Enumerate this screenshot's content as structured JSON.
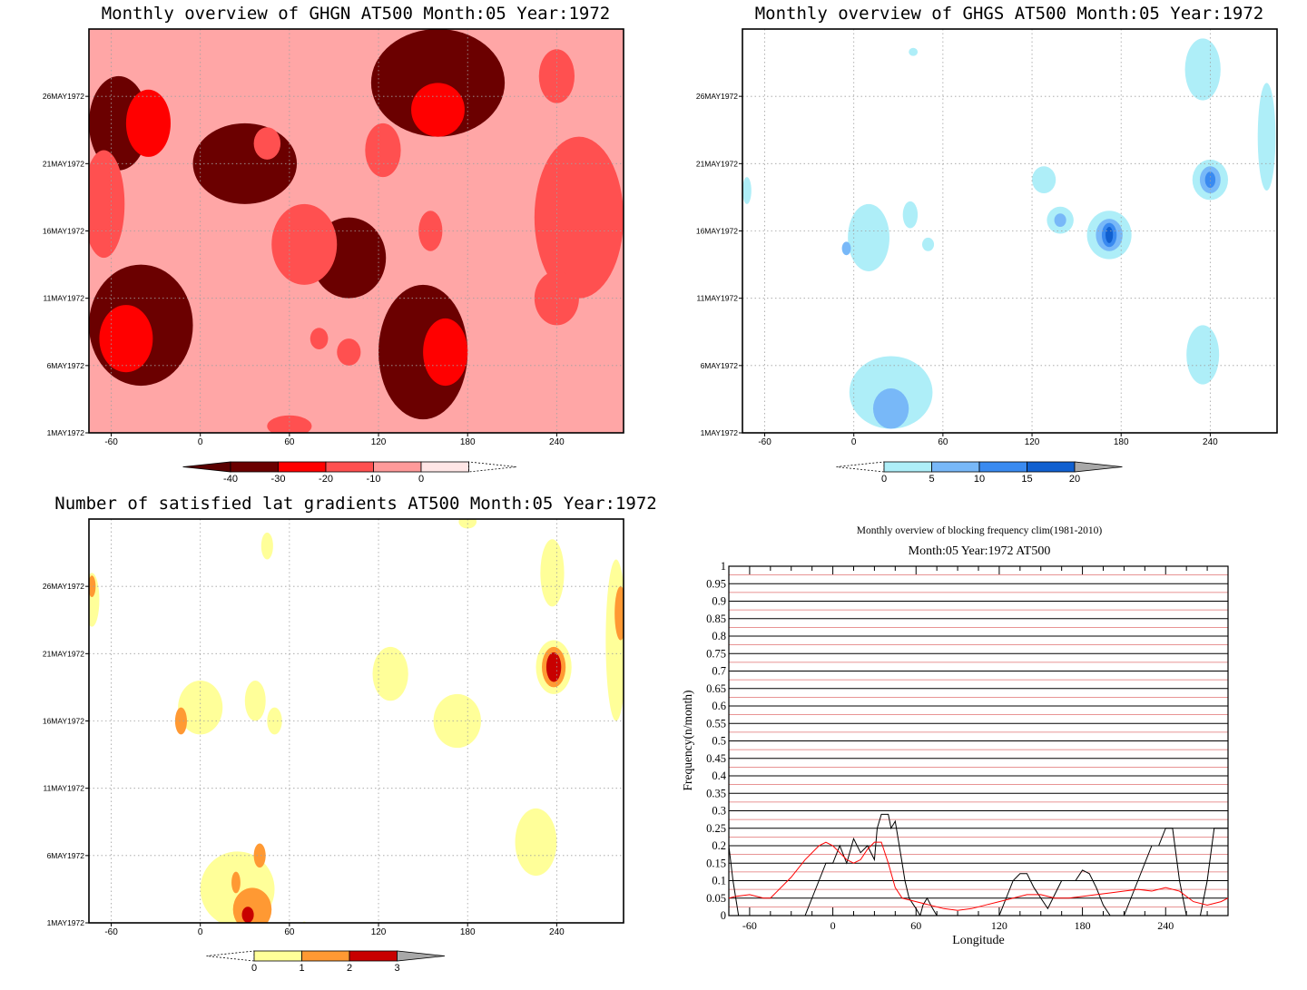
{
  "chart_data": [
    {
      "id": "ghgn",
      "type": "heatmap",
      "title": "Monthly overview of GHGN AT500 Month:05 Year:1972",
      "xlim": [
        -75,
        285
      ],
      "xticks": [
        -60,
        0,
        60,
        120,
        180,
        240
      ],
      "ylim": [
        1,
        31
      ],
      "yticks": [
        {
          "day": 1,
          "label": "1MAY1972"
        },
        {
          "day": 6,
          "label": "6MAY1972"
        },
        {
          "day": 11,
          "label": "11MAY1972"
        },
        {
          "day": 16,
          "label": "16MAY1972"
        },
        {
          "day": 21,
          "label": "21MAY1972"
        },
        {
          "day": 26,
          "label": "26MAY1972"
        }
      ],
      "colorbar": {
        "labels": [
          "-40",
          "-30",
          "-20",
          "-10",
          "0"
        ],
        "colors": [
          "#6b0000",
          "#ff0000",
          "#ff5050",
          "#ff9a9a",
          "#ffe6e6"
        ],
        "extend": "both"
      },
      "background": "#ffa6a6",
      "regions": [
        {
          "level": 0,
          "x": -40,
          "y": 9,
          "rx": 35,
          "ry": 4.5
        },
        {
          "level": 0,
          "x": 30,
          "y": 21,
          "rx": 35,
          "ry": 3
        },
        {
          "level": 0,
          "x": 150,
          "y": 7,
          "rx": 30,
          "ry": 5
        },
        {
          "level": 0,
          "x": 160,
          "y": 27,
          "rx": 45,
          "ry": 4
        },
        {
          "level": 0,
          "x": 100,
          "y": 14,
          "rx": 25,
          "ry": 3
        },
        {
          "level": 0,
          "x": -55,
          "y": 24,
          "rx": 20,
          "ry": 3.5
        },
        {
          "level": 1,
          "x": -35,
          "y": 24,
          "rx": 15,
          "ry": 2.5
        },
        {
          "level": 1,
          "x": 165,
          "y": 7,
          "rx": 15,
          "ry": 2.5
        },
        {
          "level": 1,
          "x": 160,
          "y": 25,
          "rx": 18,
          "ry": 2
        },
        {
          "level": 1,
          "x": -50,
          "y": 8,
          "rx": 18,
          "ry": 2.5
        },
        {
          "level": 2,
          "x": -65,
          "y": 18,
          "rx": 14,
          "ry": 4
        },
        {
          "level": 2,
          "x": 255,
          "y": 17,
          "rx": 30,
          "ry": 6
        },
        {
          "level": 2,
          "x": 240,
          "y": 11,
          "rx": 15,
          "ry": 2
        },
        {
          "level": 2,
          "x": 70,
          "y": 15,
          "rx": 22,
          "ry": 3
        },
        {
          "level": 2,
          "x": 123,
          "y": 22,
          "rx": 12,
          "ry": 2
        },
        {
          "level": 2,
          "x": 45,
          "y": 22.5,
          "rx": 9,
          "ry": 1.2
        },
        {
          "level": 2,
          "x": 240,
          "y": 27.5,
          "rx": 12,
          "ry": 2
        },
        {
          "level": 2,
          "x": 155,
          "y": 16,
          "rx": 8,
          "ry": 1.5
        },
        {
          "level": 2,
          "x": 60,
          "y": 1.5,
          "rx": 15,
          "ry": 0.8
        },
        {
          "level": 2,
          "x": 80,
          "y": 8,
          "rx": 6,
          "ry": 0.8
        },
        {
          "level": 2,
          "x": 100,
          "y": 7,
          "rx": 8,
          "ry": 1
        }
      ]
    },
    {
      "id": "ghgs",
      "type": "heatmap",
      "title": "Monthly overview of GHGS AT500 Month:05 Year:1972",
      "xlim": [
        -75,
        285
      ],
      "xticks": [
        -60,
        0,
        60,
        120,
        180,
        240
      ],
      "ylim": [
        1,
        31
      ],
      "yticks": [
        {
          "day": 1,
          "label": "1MAY1972"
        },
        {
          "day": 6,
          "label": "6MAY1972"
        },
        {
          "day": 11,
          "label": "11MAY1972"
        },
        {
          "day": 16,
          "label": "16MAY1972"
        },
        {
          "day": 21,
          "label": "21MAY1972"
        },
        {
          "day": 26,
          "label": "26MAY1972"
        }
      ],
      "colorbar": {
        "labels": [
          "0",
          "5",
          "10",
          "15",
          "20"
        ],
        "colors": [
          "#aeeef8",
          "#78b8f8",
          "#3a8af0",
          "#1060d0"
        ],
        "extend": "both"
      },
      "background": "#ffffff",
      "regions": [
        {
          "level": 0,
          "x": 10,
          "y": 15.5,
          "rx": 14,
          "ry": 2.5
        },
        {
          "level": 1,
          "x": -5,
          "y": 14.7,
          "rx": 3,
          "ry": 0.5
        },
        {
          "level": 0,
          "x": 25,
          "y": 4,
          "rx": 28,
          "ry": 2.7
        },
        {
          "level": 1,
          "x": 25,
          "y": 2.8,
          "rx": 12,
          "ry": 1.5
        },
        {
          "level": 0,
          "x": 38,
          "y": 17.2,
          "rx": 5,
          "ry": 1
        },
        {
          "level": 0,
          "x": 50,
          "y": 15,
          "rx": 4,
          "ry": 0.5
        },
        {
          "level": 0,
          "x": 128,
          "y": 19.8,
          "rx": 8,
          "ry": 1
        },
        {
          "level": 0,
          "x": 139,
          "y": 16.8,
          "rx": 9,
          "ry": 1
        },
        {
          "level": 1,
          "x": 139,
          "y": 16.8,
          "rx": 4,
          "ry": 0.5
        },
        {
          "level": 0,
          "x": 172,
          "y": 15.7,
          "rx": 15,
          "ry": 1.8
        },
        {
          "level": 1,
          "x": 172,
          "y": 15.7,
          "rx": 9,
          "ry": 1.2
        },
        {
          "level": 2,
          "x": 172,
          "y": 15.7,
          "rx": 5,
          "ry": 0.9
        },
        {
          "level": 3,
          "x": 172,
          "y": 15.7,
          "rx": 2.5,
          "ry": 0.6
        },
        {
          "level": 0,
          "x": 240,
          "y": 19.8,
          "rx": 12,
          "ry": 1.5
        },
        {
          "level": 1,
          "x": 240,
          "y": 19.8,
          "rx": 7,
          "ry": 1
        },
        {
          "level": 2,
          "x": 240,
          "y": 19.8,
          "rx": 3.5,
          "ry": 0.6
        },
        {
          "level": 0,
          "x": 235,
          "y": 6.8,
          "rx": 11,
          "ry": 2.2
        },
        {
          "level": 0,
          "x": 235,
          "y": 28,
          "rx": 12,
          "ry": 2.3
        },
        {
          "level": 0,
          "x": 278,
          "y": 23,
          "rx": 6,
          "ry": 4
        },
        {
          "level": 0,
          "x": -72,
          "y": 19,
          "rx": 3,
          "ry": 1
        },
        {
          "level": 0,
          "x": 40,
          "y": 29.3,
          "rx": 3,
          "ry": 0.3
        }
      ]
    },
    {
      "id": "lat-gradients",
      "type": "heatmap",
      "title": "Number of satisfied lat gradients AT500 Month:05 Year:1972",
      "xlim": [
        -75,
        285
      ],
      "xticks": [
        -60,
        0,
        60,
        120,
        180,
        240
      ],
      "ylim": [
        1,
        31
      ],
      "yticks": [
        {
          "day": 1,
          "label": "1MAY1972"
        },
        {
          "day": 6,
          "label": "6MAY1972"
        },
        {
          "day": 11,
          "label": "11MAY1972"
        },
        {
          "day": 16,
          "label": "16MAY1972"
        },
        {
          "day": 21,
          "label": "21MAY1972"
        },
        {
          "day": 26,
          "label": "26MAY1972"
        }
      ],
      "colorbar": {
        "labels": [
          "0",
          "1",
          "2",
          "3"
        ],
        "colors": [
          "#ffff99",
          "#ff9933",
          "#c80000"
        ],
        "extend": "both"
      },
      "background": "#ffffff",
      "regions": [
        {
          "level": 0,
          "x": 25,
          "y": 3.5,
          "rx": 25,
          "ry": 2.8
        },
        {
          "level": 1,
          "x": 35,
          "y": 2,
          "rx": 13,
          "ry": 1.6
        },
        {
          "level": 1,
          "x": 40,
          "y": 6,
          "rx": 4,
          "ry": 0.9
        },
        {
          "level": 1,
          "x": 24,
          "y": 4,
          "rx": 3,
          "ry": 0.8
        },
        {
          "level": 2,
          "x": 32,
          "y": 1.6,
          "rx": 4,
          "ry": 0.6
        },
        {
          "level": 0,
          "x": 0,
          "y": 17,
          "rx": 15,
          "ry": 2
        },
        {
          "level": 1,
          "x": -13,
          "y": 16,
          "rx": 4,
          "ry": 1
        },
        {
          "level": 0,
          "x": 37,
          "y": 17.5,
          "rx": 7,
          "ry": 1.5
        },
        {
          "level": 0,
          "x": 50,
          "y": 16,
          "rx": 5,
          "ry": 1
        },
        {
          "level": 0,
          "x": 128,
          "y": 19.5,
          "rx": 12,
          "ry": 2
        },
        {
          "level": 0,
          "x": 173,
          "y": 16,
          "rx": 16,
          "ry": 2
        },
        {
          "level": 0,
          "x": 226,
          "y": 7,
          "rx": 14,
          "ry": 2.5
        },
        {
          "level": 0,
          "x": 237,
          "y": 27,
          "rx": 8,
          "ry": 2.5
        },
        {
          "level": 0,
          "x": 238,
          "y": 20,
          "rx": 12,
          "ry": 2
        },
        {
          "level": 1,
          "x": 238,
          "y": 20,
          "rx": 8,
          "ry": 1.5
        },
        {
          "level": 2,
          "x": 238,
          "y": 20,
          "rx": 5,
          "ry": 1.1
        },
        {
          "level": 0,
          "x": 280,
          "y": 22,
          "rx": 7,
          "ry": 6
        },
        {
          "level": 1,
          "x": 283,
          "y": 24,
          "rx": 4,
          "ry": 2
        },
        {
          "level": 0,
          "x": -73,
          "y": 25,
          "rx": 5,
          "ry": 2
        },
        {
          "level": 1,
          "x": -73,
          "y": 26,
          "rx": 2.5,
          "ry": 0.8
        },
        {
          "level": 0,
          "x": 45,
          "y": 29,
          "rx": 4,
          "ry": 1
        },
        {
          "level": 0,
          "x": 180,
          "y": 30.8,
          "rx": 6,
          "ry": 0.5
        },
        {
          "level": 0,
          "x": 70,
          "y": 0.7,
          "rx": 2,
          "ry": 0.4
        }
      ]
    },
    {
      "id": "blocking-frequency",
      "type": "line",
      "title": "Monthly overview of blocking frequency clim(1981-2010)",
      "subtitle": "Month:05 Year:1972  AT500",
      "xlabel": "Longitude",
      "ylabel": "Frequency(n/month)",
      "xlim": [
        -75,
        285
      ],
      "ylim": [
        0,
        1
      ],
      "xticks": [
        -60,
        0,
        60,
        120,
        180,
        240
      ],
      "yticks": [
        "0",
        "0.05",
        "0.1",
        "0.15",
        "0.2",
        "0.25",
        "0.3",
        "0.35",
        "0.4",
        "0.45",
        "0.5",
        "0.55",
        "0.6",
        "0.65",
        "0.7",
        "0.75",
        "0.8",
        "0.85",
        "0.9",
        "0.95",
        "1"
      ],
      "grid": true,
      "series": [
        {
          "color": "#000000",
          "x": [
            -75,
            -72,
            -68,
            -20,
            -15,
            -10,
            -5,
            0,
            5,
            10,
            15,
            20,
            25,
            30,
            32,
            35,
            40,
            42,
            45,
            50,
            52,
            55,
            60,
            63,
            65,
            68,
            72,
            75,
            120,
            125,
            130,
            135,
            140,
            145,
            150,
            155,
            160,
            165,
            170,
            175,
            180,
            185,
            190,
            195,
            200,
            210,
            215,
            220,
            225,
            230,
            235,
            240,
            245,
            250,
            255,
            265,
            270,
            275,
            285
          ],
          "y": [
            0.2,
            0.1,
            0,
            0,
            0.05,
            0.1,
            0.15,
            0.15,
            0.2,
            0.15,
            0.22,
            0.18,
            0.2,
            0.16,
            0.25,
            0.29,
            0.29,
            0.25,
            0.27,
            0.15,
            0.1,
            0.05,
            0.02,
            0,
            0.03,
            0.05,
            0.02,
            0,
            0,
            0.05,
            0.1,
            0.12,
            0.12,
            0.08,
            0.05,
            0.02,
            0.06,
            0.1,
            0.1,
            0.1,
            0.13,
            0.12,
            0.08,
            0.03,
            0,
            0,
            0.05,
            0.1,
            0.15,
            0.2,
            0.2,
            0.25,
            0.25,
            0.1,
            0,
            0,
            0.1,
            0.25,
            0.25
          ]
        },
        {
          "color": "#ff0000",
          "x": [
            -75,
            -70,
            -60,
            -50,
            -45,
            -40,
            -30,
            -20,
            -10,
            -5,
            0,
            5,
            10,
            15,
            20,
            25,
            30,
            35,
            40,
            45,
            50,
            60,
            70,
            80,
            90,
            100,
            110,
            120,
            130,
            140,
            150,
            160,
            170,
            180,
            190,
            200,
            210,
            220,
            230,
            240,
            250,
            260,
            270,
            280,
            285
          ],
          "y": [
            0.05,
            0.055,
            0.06,
            0.05,
            0.05,
            0.07,
            0.11,
            0.16,
            0.2,
            0.21,
            0.2,
            0.18,
            0.16,
            0.15,
            0.16,
            0.19,
            0.21,
            0.21,
            0.15,
            0.08,
            0.05,
            0.04,
            0.03,
            0.02,
            0.015,
            0.02,
            0.03,
            0.04,
            0.05,
            0.06,
            0.06,
            0.05,
            0.05,
            0.055,
            0.06,
            0.065,
            0.07,
            0.075,
            0.07,
            0.08,
            0.07,
            0.04,
            0.03,
            0.04,
            0.05
          ]
        }
      ]
    }
  ]
}
